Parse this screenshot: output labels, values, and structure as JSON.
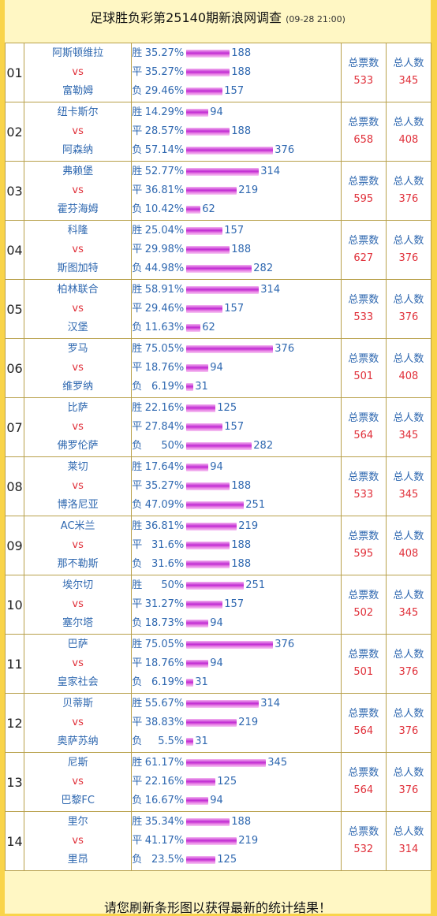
{
  "header": {
    "title": "足球胜负彩第25140期新浪网调查",
    "timestamp": "(09-28 21:00)"
  },
  "labels": {
    "win": "胜",
    "draw": "平",
    "loss": "负",
    "vs": "vs",
    "total_votes": "总票数",
    "total_people": "总人数"
  },
  "matches": [
    {
      "num": "01",
      "home": "阿斯顿维拉",
      "away": "富勒姆",
      "win_pct": "35.27%",
      "win": 188,
      "draw_pct": "35.27%",
      "draw": 188,
      "loss_pct": "29.46%",
      "loss": 157,
      "total_votes": 533,
      "total_people": 345
    },
    {
      "num": "02",
      "home": "纽卡斯尔",
      "away": "阿森纳",
      "win_pct": "14.29%",
      "win": 94,
      "draw_pct": "28.57%",
      "draw": 188,
      "loss_pct": "57.14%",
      "loss": 376,
      "total_votes": 658,
      "total_people": 408
    },
    {
      "num": "03",
      "home": "弗赖堡",
      "away": "霍芬海姆",
      "win_pct": "52.77%",
      "win": 314,
      "draw_pct": "36.81%",
      "draw": 219,
      "loss_pct": "10.42%",
      "loss": 62,
      "total_votes": 595,
      "total_people": 376
    },
    {
      "num": "04",
      "home": "科隆",
      "away": "斯图加特",
      "win_pct": "25.04%",
      "win": 157,
      "draw_pct": "29.98%",
      "draw": 188,
      "loss_pct": "44.98%",
      "loss": 282,
      "total_votes": 627,
      "total_people": 376
    },
    {
      "num": "05",
      "home": "柏林联合",
      "away": "汉堡",
      "win_pct": "58.91%",
      "win": 314,
      "draw_pct": "29.46%",
      "draw": 157,
      "loss_pct": "11.63%",
      "loss": 62,
      "total_votes": 533,
      "total_people": 376
    },
    {
      "num": "06",
      "home": "罗马",
      "away": "维罗纳",
      "win_pct": "75.05%",
      "win": 376,
      "draw_pct": "18.76%",
      "draw": 94,
      "loss_pct": "6.19%",
      "loss": 31,
      "total_votes": 501,
      "total_people": 408
    },
    {
      "num": "07",
      "home": "比萨",
      "away": "佛罗伦萨",
      "win_pct": "22.16%",
      "win": 125,
      "draw_pct": "27.84%",
      "draw": 157,
      "loss_pct": "50%",
      "loss": 282,
      "total_votes": 564,
      "total_people": 345
    },
    {
      "num": "08",
      "home": "莱切",
      "away": "博洛尼亚",
      "win_pct": "17.64%",
      "win": 94,
      "draw_pct": "35.27%",
      "draw": 188,
      "loss_pct": "47.09%",
      "loss": 251,
      "total_votes": 533,
      "total_people": 345
    },
    {
      "num": "09",
      "home": "AC米兰",
      "away": "那不勒斯",
      "win_pct": "36.81%",
      "win": 219,
      "draw_pct": "31.6%",
      "draw": 188,
      "loss_pct": "31.6%",
      "loss": 188,
      "total_votes": 595,
      "total_people": 408
    },
    {
      "num": "10",
      "home": "埃尔切",
      "away": "塞尔塔",
      "win_pct": "50%",
      "win": 251,
      "draw_pct": "31.27%",
      "draw": 157,
      "loss_pct": "18.73%",
      "loss": 94,
      "total_votes": 502,
      "total_people": 345
    },
    {
      "num": "11",
      "home": "巴萨",
      "away": "皇家社会",
      "win_pct": "75.05%",
      "win": 376,
      "draw_pct": "18.76%",
      "draw": 94,
      "loss_pct": "6.19%",
      "loss": 31,
      "total_votes": 501,
      "total_people": 376
    },
    {
      "num": "12",
      "home": "贝蒂斯",
      "away": "奥萨苏纳",
      "win_pct": "55.67%",
      "win": 314,
      "draw_pct": "38.83%",
      "draw": 219,
      "loss_pct": "5.5%",
      "loss": 31,
      "total_votes": 564,
      "total_people": 376
    },
    {
      "num": "13",
      "home": "尼斯",
      "away": "巴黎FC",
      "win_pct": "61.17%",
      "win": 345,
      "draw_pct": "22.16%",
      "draw": 125,
      "loss_pct": "16.67%",
      "loss": 94,
      "total_votes": 564,
      "total_people": 376
    },
    {
      "num": "14",
      "home": "里尔",
      "away": "里昂",
      "win_pct": "35.34%",
      "win": 188,
      "draw_pct": "41.17%",
      "draw": 219,
      "loss_pct": "23.5%",
      "loss": 125,
      "total_votes": 532,
      "total_people": 314
    }
  ],
  "footer": {
    "text": "请您刷新条形图以获得最新的统计结果！"
  },
  "colors": {
    "page_background": "#f9d44a",
    "panel_background": "#fff7c4",
    "team_text": "#2f68b0",
    "vs_text": "#e0303a",
    "bar": "#c02ad2"
  }
}
